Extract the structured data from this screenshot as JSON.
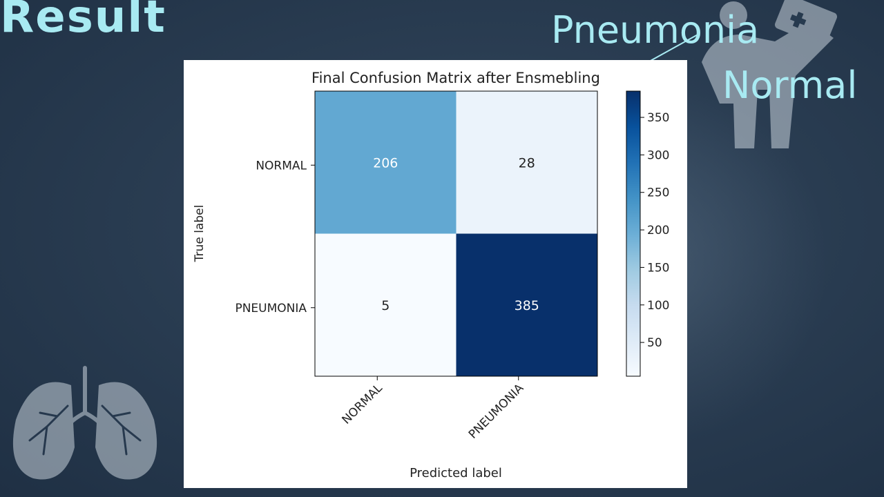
{
  "slide": {
    "title": "Result",
    "badge": {
      "top_text": "Pneumonia",
      "bottom_text": "Normal"
    },
    "icons": [
      "doctor-icon",
      "lungs-icon"
    ]
  },
  "chart_data": {
    "type": "heatmap",
    "title": "Final Confusion Matrix after Ensmebling",
    "xlabel": "Predicted label",
    "ylabel": "True label",
    "x_categories": [
      "NORMAL",
      "PNEUMONIA"
    ],
    "y_categories": [
      "NORMAL",
      "PNEUMONIA"
    ],
    "values": [
      [
        206,
        28
      ],
      [
        5,
        385
      ]
    ],
    "colormap": "Blues",
    "colorbar": {
      "min": 5,
      "max": 385,
      "ticks": [
        50,
        100,
        150,
        200,
        250,
        300,
        350
      ]
    },
    "grid": false
  }
}
